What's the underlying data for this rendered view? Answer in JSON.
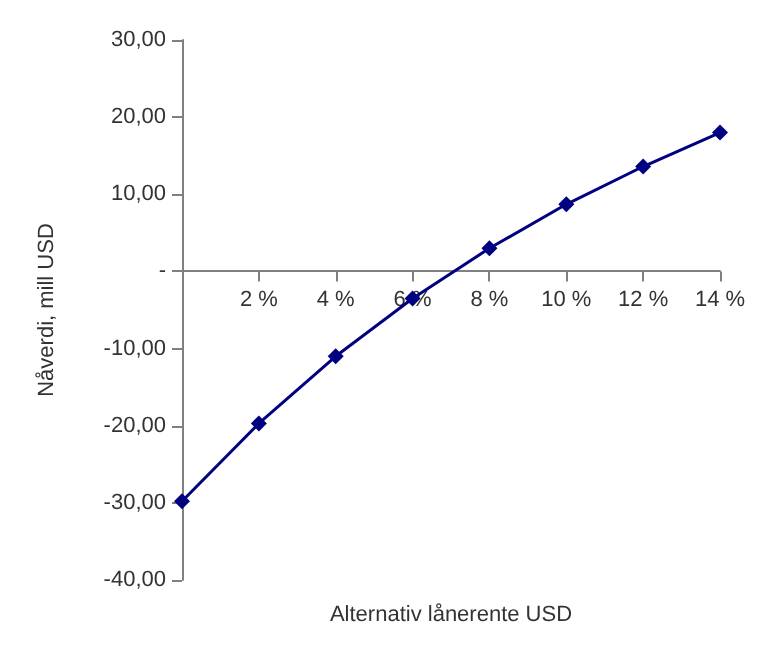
{
  "chart_data": {
    "type": "line",
    "xlabel": "Alternativ lånerente USD",
    "ylabel": "Nåverdi, mill USD",
    "x": [
      0,
      2,
      4,
      6,
      8,
      10,
      12,
      14
    ],
    "series": [
      {
        "color": "#000080",
        "values": [
          -29.8,
          -19.7,
          -11.0,
          -3.5,
          3.0,
          8.7,
          13.6,
          18.0
        ]
      }
    ],
    "xlim": [
      0,
      14
    ],
    "xticks": [
      {
        "value": 2,
        "label": "2 %"
      },
      {
        "value": 4,
        "label": "4 %"
      },
      {
        "value": 6,
        "label": "6 %"
      },
      {
        "value": 8,
        "label": "8 %"
      },
      {
        "value": 10,
        "label": "10 %"
      },
      {
        "value": 12,
        "label": "12 %"
      },
      {
        "value": 14,
        "label": "14 %"
      }
    ],
    "ylim": [
      -40,
      30
    ],
    "yticks": [
      {
        "value": -40,
        "label": "-40,00"
      },
      {
        "value": -30,
        "label": "-30,00"
      },
      {
        "value": -20,
        "label": "-20,00"
      },
      {
        "value": -10,
        "label": "-10,00"
      },
      {
        "value": 0,
        "label": "-"
      },
      {
        "value": 10,
        "label": "10,00"
      },
      {
        "value": 20,
        "label": "20,00"
      },
      {
        "value": 30,
        "label": "30,00"
      }
    ],
    "grid": false,
    "marker": "diamond",
    "line_style": "solid"
  }
}
